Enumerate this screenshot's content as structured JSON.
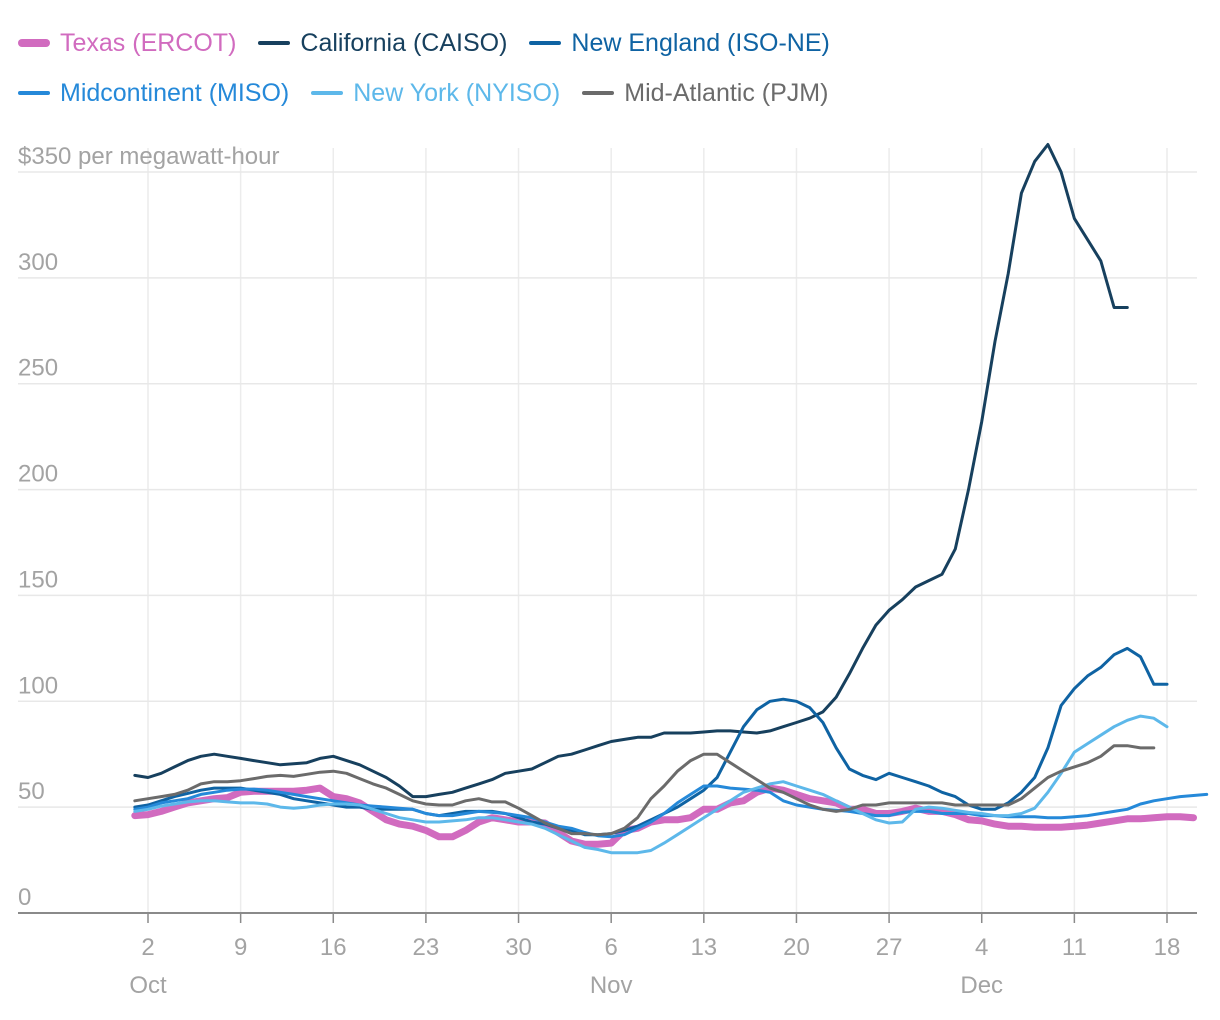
{
  "chart_data": {
    "type": "line",
    "title": "",
    "ylabel": "$350 per megawatt-hour",
    "xlabel": "",
    "ylim": [
      0,
      350
    ],
    "yticks": [
      {
        "value": 0,
        "label": "0"
      },
      {
        "value": 50,
        "label": "50"
      },
      {
        "value": 100,
        "label": "100"
      },
      {
        "value": 150,
        "label": "150"
      },
      {
        "value": 200,
        "label": "200"
      },
      {
        "value": 250,
        "label": "250"
      },
      {
        "value": 300,
        "label": "300"
      }
    ],
    "xlim": [
      -1,
      78
    ],
    "xticks": [
      {
        "day": 1,
        "label": "2"
      },
      {
        "day": 8,
        "label": "9"
      },
      {
        "day": 15,
        "label": "16"
      },
      {
        "day": 22,
        "label": "23"
      },
      {
        "day": 29,
        "label": "30"
      },
      {
        "day": 36,
        "label": "6"
      },
      {
        "day": 43,
        "label": "13"
      },
      {
        "day": 50,
        "label": "20"
      },
      {
        "day": 57,
        "label": "27"
      },
      {
        "day": 64,
        "label": "4"
      },
      {
        "day": 71,
        "label": "11"
      },
      {
        "day": 78,
        "label": "18"
      }
    ],
    "month_labels": [
      {
        "day": 1,
        "label": "Oct"
      },
      {
        "day": 36,
        "label": "Nov"
      },
      {
        "day": 64,
        "label": "Dec"
      }
    ],
    "x_start_day": 0,
    "grid": true,
    "legend_position": "top",
    "series": [
      {
        "name": "Texas (ERCOT)",
        "color": "#d16bbf",
        "width": 7,
        "values": [
          46,
          46.5,
          48,
          50,
          52,
          53,
          54,
          54.5,
          57,
          57.5,
          57.5,
          57.5,
          57.5,
          58,
          59,
          55,
          54,
          52,
          48,
          44,
          42,
          41,
          39,
          36,
          36,
          39,
          43,
          45,
          44,
          43,
          43,
          42.5,
          38,
          34,
          32.5,
          32.5,
          33,
          39,
          40,
          43,
          44,
          44,
          45,
          49,
          49,
          52,
          53,
          57,
          59,
          58,
          56,
          54,
          53,
          52,
          49,
          49,
          47,
          47,
          48,
          49.5,
          48,
          48,
          46.5,
          44,
          43.5,
          42,
          41,
          41,
          40.5,
          40.5,
          40.5,
          41,
          41.5,
          42.5,
          43.5,
          44.5,
          44.5,
          45,
          45.5,
          45.5,
          45
        ]
      },
      {
        "name": "California (CAISO)",
        "color": "#17405e",
        "width": 3,
        "values": [
          65,
          64,
          66,
          69,
          72,
          74,
          75,
          74,
          73,
          72,
          71,
          70,
          70.5,
          71,
          73,
          74,
          72,
          70,
          67,
          64,
          60,
          55,
          55,
          56,
          57,
          59,
          61,
          63,
          66,
          67,
          68,
          71,
          74,
          75,
          77,
          79,
          81,
          82,
          83,
          83,
          85,
          85,
          85,
          85.5,
          86,
          86,
          85.5,
          85,
          86,
          88,
          90,
          92,
          95,
          102,
          113,
          125,
          136,
          143,
          148,
          154,
          157,
          160,
          172,
          200,
          232,
          270,
          302,
          340,
          355,
          363,
          350,
          328,
          318,
          308,
          286,
          286
        ]
      },
      {
        "name": "New England (ISO-NE)",
        "color": "#0f63a3",
        "width": 3,
        "values": [
          50,
          51,
          53,
          55,
          56.5,
          58,
          59,
          59,
          59,
          58,
          57,
          56,
          54,
          53,
          52,
          51,
          50,
          50,
          49,
          49,
          49,
          49,
          47,
          46,
          47,
          48,
          48,
          48,
          47,
          45,
          43,
          42,
          40,
          39,
          37,
          37,
          37.5,
          39,
          41,
          44,
          47,
          50,
          54,
          58,
          64,
          76,
          88,
          96,
          100,
          101,
          100,
          97,
          90,
          78,
          68,
          65,
          63,
          66,
          64,
          62,
          60,
          57,
          55,
          51,
          49,
          49,
          52,
          57,
          64,
          78,
          98,
          106,
          112,
          116,
          122,
          125,
          121,
          108,
          108
        ]
      },
      {
        "name": "Midcontinent (MISO)",
        "color": "#2589d9",
        "width": 3,
        "values": [
          49,
          50,
          52,
          53,
          54,
          56,
          57,
          58,
          58.5,
          58.5,
          58,
          57,
          56,
          55,
          54,
          53,
          52,
          51,
          50.5,
          50,
          49.5,
          49,
          47,
          46,
          46,
          47,
          48,
          47.5,
          47,
          46,
          45,
          43,
          41,
          40,
          38,
          36.5,
          36,
          37,
          40,
          43,
          47,
          52,
          56,
          60,
          60,
          59,
          58.5,
          58,
          57,
          53,
          51,
          50,
          49,
          48.5,
          48,
          47,
          46,
          46,
          47.5,
          48,
          48,
          47,
          47,
          47,
          46,
          46,
          45.5,
          45.5,
          45.5,
          45,
          45,
          45.5,
          46,
          47,
          48,
          49,
          51.5,
          53,
          54,
          55,
          55.5,
          56
        ]
      },
      {
        "name": "New York (NYISO)",
        "color": "#5db8ea",
        "width": 3,
        "values": [
          48,
          49,
          50.5,
          51.5,
          52.5,
          53,
          53,
          52.5,
          52,
          52,
          51.5,
          50,
          49.5,
          50,
          51,
          51.5,
          51.5,
          51,
          49,
          47,
          45,
          44,
          43,
          43,
          43.5,
          44,
          45,
          45,
          44,
          43,
          42,
          40,
          37,
          34,
          31,
          30,
          28.5,
          28.5,
          28.5,
          29.5,
          33,
          37,
          41,
          45,
          49,
          53,
          57,
          59,
          61,
          62,
          60,
          58,
          56,
          53,
          50,
          47,
          44,
          42.5,
          43,
          49,
          50,
          49.5,
          48.5,
          47.5,
          47,
          46,
          46,
          47,
          49.5,
          57,
          66,
          76,
          80,
          84,
          88,
          91,
          93,
          92,
          88
        ]
      },
      {
        "name": "Mid-Atlantic (PJM)",
        "color": "#6b6b6b",
        "width": 3,
        "values": [
          53,
          54,
          55,
          56,
          58,
          61,
          62,
          62,
          62.5,
          63.5,
          64.5,
          65,
          64.5,
          65.5,
          66.5,
          67,
          66,
          63.5,
          61,
          59,
          56,
          53,
          51.5,
          51,
          51,
          53,
          54,
          52.5,
          52.5,
          49.5,
          46,
          42.5,
          40,
          37.5,
          37.5,
          37,
          37.5,
          40,
          45,
          54,
          60,
          67,
          72,
          75,
          75,
          71,
          67,
          63,
          59,
          57,
          54,
          51,
          49,
          48,
          49,
          51,
          51,
          52,
          52,
          52,
          52,
          52,
          51,
          51,
          51,
          51,
          51,
          54,
          59,
          64,
          67,
          69,
          71,
          74,
          79,
          79,
          78,
          78
        ]
      }
    ]
  }
}
